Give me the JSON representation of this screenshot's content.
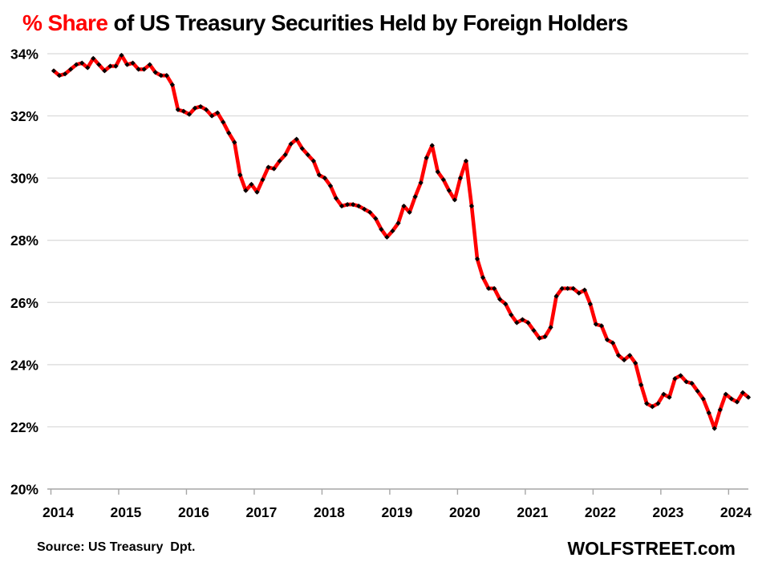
{
  "title": {
    "accent": "% Share",
    "rest": " of US Treasury Securities Held by Foreign Holders"
  },
  "footer": {
    "source": "Source: US Treasury  Dpt.",
    "branding": "WOLFSTREET.com"
  },
  "chart_data": {
    "type": "line",
    "title": "% Share of US Treasury Securities Held by Foreign Holders",
    "title_accent": "% Share",
    "title_accent_color": "#ff0000",
    "x": [
      "2014-01",
      "2014-02",
      "2014-03",
      "2014-04",
      "2014-05",
      "2014-06",
      "2014-07",
      "2014-08",
      "2014-09",
      "2014-10",
      "2014-11",
      "2014-12",
      "2015-01",
      "2015-02",
      "2015-03",
      "2015-04",
      "2015-05",
      "2015-06",
      "2015-07",
      "2015-08",
      "2015-09",
      "2015-10",
      "2015-11",
      "2015-12",
      "2016-01",
      "2016-02",
      "2016-03",
      "2016-04",
      "2016-05",
      "2016-06",
      "2016-07",
      "2016-08",
      "2016-09",
      "2016-10",
      "2016-11",
      "2016-12",
      "2017-01",
      "2017-02",
      "2017-03",
      "2017-04",
      "2017-05",
      "2017-06",
      "2017-07",
      "2017-08",
      "2017-09",
      "2017-10",
      "2017-11",
      "2017-12",
      "2018-01",
      "2018-02",
      "2018-03",
      "2018-04",
      "2018-05",
      "2018-06",
      "2018-07",
      "2018-08",
      "2018-09",
      "2018-10",
      "2018-11",
      "2018-12",
      "2019-01",
      "2019-02",
      "2019-03",
      "2019-04",
      "2019-05",
      "2019-06",
      "2019-07",
      "2019-08",
      "2019-09",
      "2019-10",
      "2019-11",
      "2019-12",
      "2020-01",
      "2020-02",
      "2020-03",
      "2020-04",
      "2020-05",
      "2020-06",
      "2020-07",
      "2020-08",
      "2020-09",
      "2020-10",
      "2020-11",
      "2020-12",
      "2021-01",
      "2021-02",
      "2021-03",
      "2021-04",
      "2021-05",
      "2021-06",
      "2021-07",
      "2021-08",
      "2021-09",
      "2021-10",
      "2021-11",
      "2021-12",
      "2022-01",
      "2022-02",
      "2022-03",
      "2022-04",
      "2022-05",
      "2022-06",
      "2022-07",
      "2022-08",
      "2022-09",
      "2022-10",
      "2022-11",
      "2022-12",
      "2023-01",
      "2023-02",
      "2023-03",
      "2023-04",
      "2023-05",
      "2023-06",
      "2023-07",
      "2023-08",
      "2023-09",
      "2023-10",
      "2023-11",
      "2023-12",
      "2024-01",
      "2024-02",
      "2024-03",
      "2024-04"
    ],
    "values": [
      33.45,
      33.3,
      33.35,
      33.5,
      33.65,
      33.7,
      33.55,
      33.85,
      33.65,
      33.45,
      33.6,
      33.6,
      33.95,
      33.65,
      33.7,
      33.5,
      33.5,
      33.65,
      33.4,
      33.3,
      33.3,
      33.0,
      32.2,
      32.15,
      32.05,
      32.25,
      32.3,
      32.2,
      32.0,
      32.1,
      31.8,
      31.45,
      31.15,
      30.1,
      29.6,
      29.8,
      29.55,
      29.95,
      30.35,
      30.3,
      30.55,
      30.75,
      31.1,
      31.25,
      30.95,
      30.75,
      30.55,
      30.1,
      30.0,
      29.75,
      29.35,
      29.1,
      29.15,
      29.15,
      29.1,
      29.0,
      28.9,
      28.7,
      28.35,
      28.1,
      28.3,
      28.55,
      29.1,
      28.9,
      29.4,
      29.85,
      30.65,
      31.05,
      30.2,
      29.95,
      29.6,
      29.3,
      30.0,
      30.55,
      29.1,
      27.4,
      26.8,
      26.45,
      26.45,
      26.1,
      25.95,
      25.6,
      25.35,
      25.45,
      25.35,
      25.1,
      24.85,
      24.9,
      25.2,
      26.2,
      26.45,
      26.45,
      26.45,
      26.3,
      26.4,
      25.95,
      25.3,
      25.25,
      24.8,
      24.7,
      24.3,
      24.15,
      24.3,
      24.05,
      23.35,
      22.75,
      22.65,
      22.75,
      23.05,
      22.95,
      23.55,
      23.65,
      23.45,
      23.4,
      23.15,
      22.9,
      22.45,
      21.95,
      22.55,
      23.05,
      22.9,
      22.8,
      23.1,
      22.95
    ],
    "xlabel": "",
    "ylabel": "",
    "ylim": [
      20,
      34
    ],
    "y_tick_step": 2,
    "y_tick_suffix": "%",
    "y_tick_labels": [
      "20%",
      "22%",
      "24%",
      "26%",
      "28%",
      "30%",
      "32%",
      "34%"
    ],
    "x_tick_labels": [
      "2014",
      "2015",
      "2016",
      "2017",
      "2018",
      "2019",
      "2020",
      "2021",
      "2022",
      "2023",
      "2024"
    ],
    "grid": true,
    "legend": false,
    "line_color": "#ff0000",
    "marker_color": "#000000",
    "grid_color": "#d9d9d9",
    "axis_color": "#a6a6a6",
    "text_color": "#000000"
  }
}
